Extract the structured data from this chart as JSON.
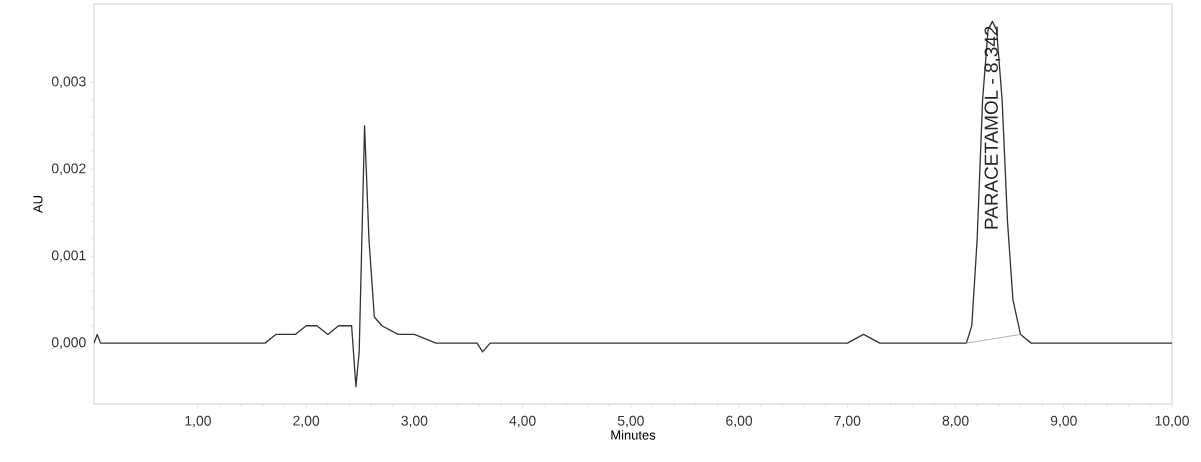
{
  "chart_data": {
    "type": "line",
    "xlabel": "Minutes",
    "ylabel": "AU",
    "xlim": [
      0.04,
      10
    ],
    "ylim": [
      -0.0007,
      0.0039
    ],
    "xticks": [
      {
        "value": 1,
        "label": "1,00"
      },
      {
        "value": 2,
        "label": "2,00"
      },
      {
        "value": 3,
        "label": "3,00"
      },
      {
        "value": 4,
        "label": "4,00"
      },
      {
        "value": 5,
        "label": "5,00"
      },
      {
        "value": 6,
        "label": "6,00"
      },
      {
        "value": 7,
        "label": "7,00"
      },
      {
        "value": 8,
        "label": "8,00"
      },
      {
        "value": 9,
        "label": "9,00"
      },
      {
        "value": 10,
        "label": "10,00"
      }
    ],
    "yticks": [
      {
        "value": 0,
        "label": "0,000"
      },
      {
        "value": 0.001,
        "label": "0,001"
      },
      {
        "value": 0.002,
        "label": "0,002"
      },
      {
        "value": 0.003,
        "label": "0,003"
      }
    ],
    "grid": false,
    "marker": "none",
    "line_style": "solid",
    "annotations": [
      "PARACETAMOL - 8,342"
    ],
    "series": [
      {
        "color": "#333333",
        "x": [
          0.04,
          0.07,
          0.1,
          0.2,
          0.5,
          1.0,
          1.5,
          1.62,
          1.72,
          1.8,
          1.9,
          2.0,
          2.1,
          2.2,
          2.3,
          2.38,
          2.42,
          2.46,
          2.49,
          2.54,
          2.58,
          2.63,
          2.7,
          2.85,
          3.0,
          3.2,
          3.5,
          3.58,
          3.63,
          3.7,
          4.0,
          5.0,
          5.5,
          6.0,
          6.5,
          7.0,
          7.15,
          7.3,
          7.6,
          8.0,
          8.1,
          8.15,
          8.2,
          8.25,
          8.3,
          8.34,
          8.38,
          8.43,
          8.48,
          8.53,
          8.6,
          8.7,
          9.0,
          9.5,
          9.7,
          10.0
        ],
        "values": [
          0.0,
          0.0001,
          0.0,
          0.0,
          0.0,
          0.0,
          0.0,
          0.0,
          0.0001,
          0.0001,
          0.0001,
          0.0002,
          0.0002,
          0.0001,
          0.0002,
          0.0002,
          0.0002,
          -0.0005,
          -0.0001,
          0.0025,
          0.0012,
          0.0003,
          0.0002,
          0.0001,
          0.0001,
          0.0,
          0.0,
          0.0,
          -0.0001,
          0.0,
          0.0,
          0.0,
          0.0,
          0.0,
          0.0,
          0.0,
          0.0001,
          0.0,
          0.0,
          0.0,
          0.0,
          0.0002,
          0.0012,
          0.0028,
          0.0036,
          0.0037,
          0.0036,
          0.0028,
          0.0014,
          0.0005,
          0.0001,
          0.0,
          0.0,
          0.0,
          0.0,
          0.0
        ]
      },
      {
        "color": "#a0a0a0",
        "x": [
          8.1,
          8.6
        ],
        "values": [
          0.0,
          0.0001
        ]
      }
    ]
  }
}
